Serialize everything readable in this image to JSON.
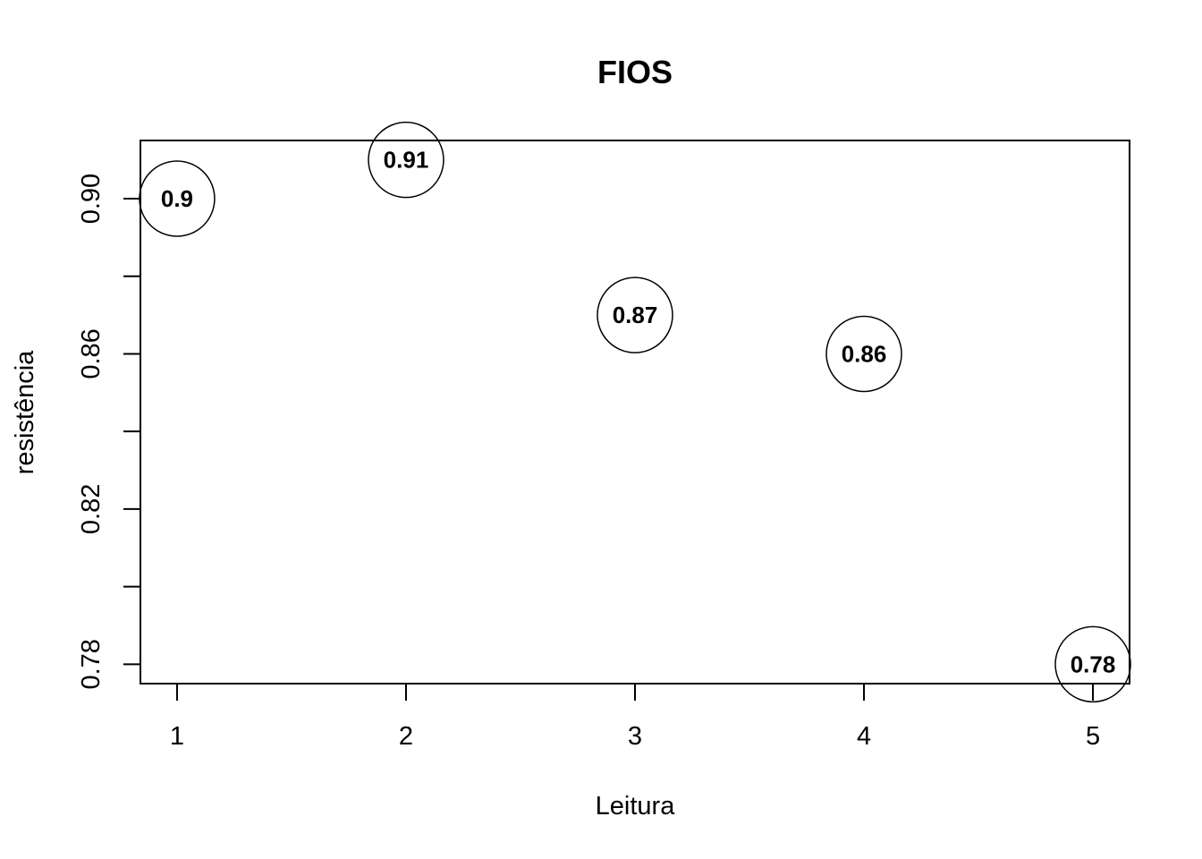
{
  "chart_data": {
    "type": "scatter",
    "title": "FIOS",
    "xlabel": "Leitura",
    "ylabel": "resistência",
    "x": [
      1,
      2,
      3,
      4,
      5
    ],
    "y": [
      0.9,
      0.91,
      0.87,
      0.86,
      0.78
    ],
    "point_labels": [
      "0.9",
      "0.91",
      "0.87",
      "0.86",
      "0.78"
    ],
    "xticks": [
      1,
      2,
      3,
      4,
      5
    ],
    "xtick_labels": [
      "1",
      "2",
      "3",
      "4",
      "5"
    ],
    "yticks": [
      0.78,
      0.8,
      0.82,
      0.84,
      0.86,
      0.88,
      0.9
    ],
    "ytick_labels": [
      "0.78",
      "",
      "0.82",
      "",
      "0.86",
      "",
      "0.90"
    ],
    "xlim": [
      0.84,
      5.16
    ],
    "ylim": [
      0.775,
      0.915
    ],
    "marker": "open-circle",
    "grid": false,
    "colors": {
      "stroke": "#000000",
      "background": "#ffffff"
    }
  }
}
